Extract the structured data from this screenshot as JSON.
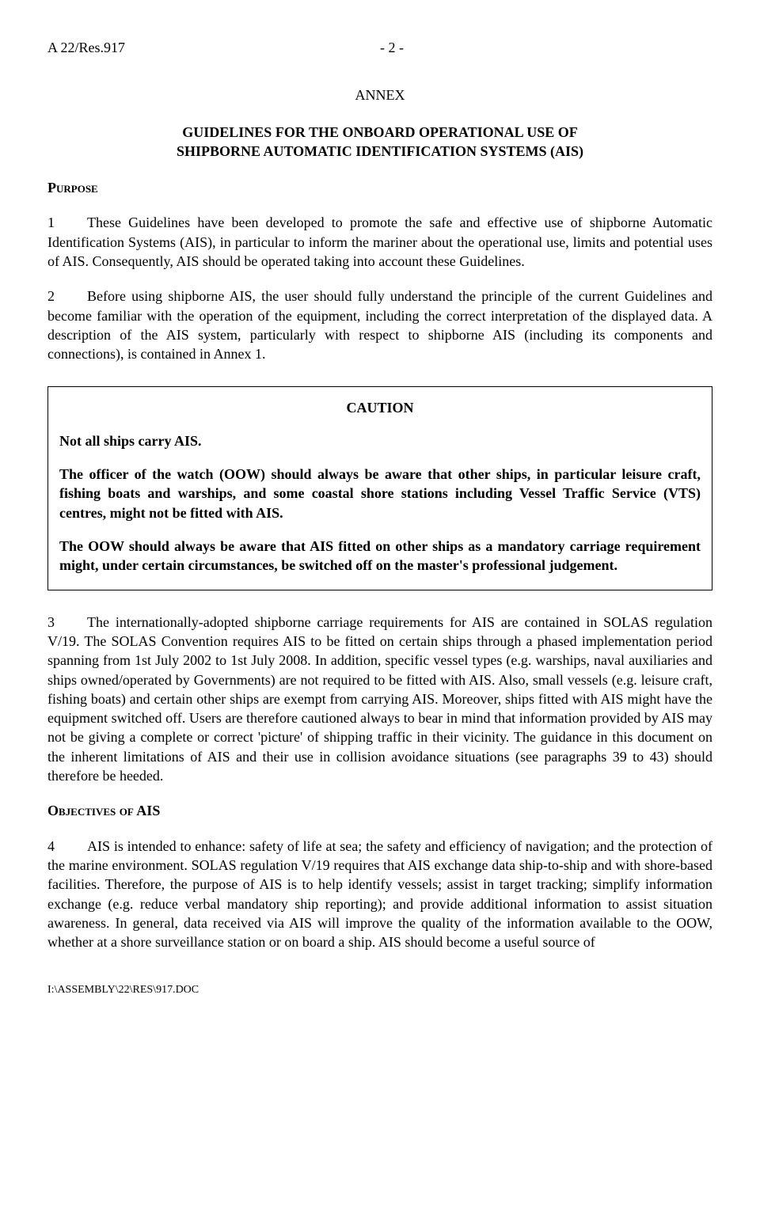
{
  "header": {
    "doc_id": "A 22/Res.917",
    "page_num": "- 2 -"
  },
  "annex_label": "ANNEX",
  "title": {
    "line1": "GUIDELINES FOR THE ONBOARD OPERATIONAL USE OF",
    "line2": "SHIPBORNE AUTOMATIC IDENTIFICATION SYSTEMS (AIS)"
  },
  "sections": {
    "purpose_heading": "Purpose",
    "objectives_heading": "Objectives of AIS"
  },
  "paragraphs": {
    "p1_num": "1",
    "p1_text": "These Guidelines have been developed to promote the safe and effective use of shipborne Automatic Identification Systems (AIS), in particular to inform the mariner about the operational use, limits and potential uses of AIS.  Consequently, AIS should be operated taking into account these Guidelines.",
    "p2_num": "2",
    "p2_text": "Before using shipborne AIS, the user should fully understand the principle of the current Guidelines and become familiar with the operation of the equipment, including the correct interpretation of the displayed data. A description of the AIS system, particularly with respect to shipborne AIS (including its components and connections), is contained in Annex 1.",
    "p3_num": "3",
    "p3_text": "The internationally-adopted shipborne carriage requirements for AIS are contained in SOLAS regulation V/19.  The SOLAS Convention requires AIS to be fitted on certain ships through a phased implementation period spanning from 1st July 2002 to 1st July 2008.  In addition, specific vessel types (e.g. warships, naval auxiliaries and ships owned/operated by Governments) are not required to be fitted with AIS. Also, small vessels (e.g. leisure craft, fishing boats) and certain other ships are exempt from carrying AIS. Moreover, ships fitted with AIS might have the equipment switched off. Users are therefore cautioned always to bear in mind that information provided by AIS may not be giving a complete or correct 'picture' of shipping traffic in their vicinity.  The guidance in this document on the inherent limitations of AIS and their use in collision avoidance situations (see paragraphs 39 to 43) should therefore be heeded.",
    "p4_num": "4",
    "p4_text": "AIS is intended to enhance:  safety of life at sea; the safety and efficiency of navigation; and the protection of the marine environment.  SOLAS regulation V/19 requires that AIS exchange data ship-to-ship and with shore-based facilities.  Therefore, the purpose of AIS is to help identify vessels; assist in target tracking; simplify information exchange (e.g. reduce verbal mandatory ship reporting); and provide additional information to assist situation awareness.  In general, data received via AIS will improve the quality of the information available to the OOW, whether at a shore surveillance station or on board a ship.  AIS should become a useful source of"
  },
  "caution": {
    "label": "CAUTION",
    "line1": "Not all ships carry AIS.",
    "line2": "The officer of the watch (OOW) should always be aware that other ships, in particular leisure craft, fishing boats and warships, and some coastal shore stations including Vessel Traffic Service (VTS) centres, might not be fitted with AIS.",
    "line3": "The OOW should always be aware that AIS fitted on other ships as a mandatory carriage requirement might, under certain circumstances, be switched off on the master's professional judgement."
  },
  "footer": "I:\\ASSEMBLY\\22\\RES\\917.DOC"
}
